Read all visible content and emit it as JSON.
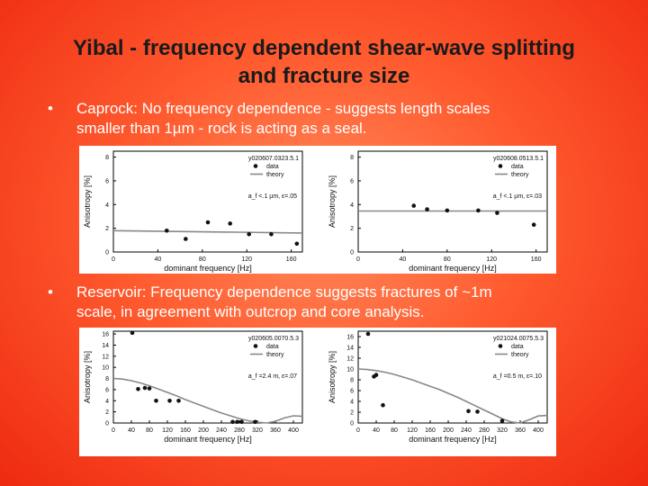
{
  "slide": {
    "title_line1": "Yibal - frequency dependent shear-wave splitting",
    "title_line2": "and fracture size",
    "bullets": [
      {
        "symbol": "•",
        "line1": "Caprock: No frequency dependence - suggests length scales",
        "line2": "smaller than 1µm - rock is acting as a seal."
      },
      {
        "symbol": "•",
        "line1": "Reservoir: Frequency dependence suggests fractures of ~1m",
        "line2": "scale, in agreement with outcrop and core analysis."
      }
    ]
  },
  "colors": {
    "background": "#ff5a2e",
    "title": "#1a1a1a",
    "bullet_text": "#ffffff",
    "theory_line": "#888888",
    "data_point": "#111111"
  },
  "chart_data": [
    {
      "type": "scatter",
      "id": "y020607.0323.5.1",
      "legend": [
        "data",
        "theory"
      ],
      "annotation": "a_f <.1 µm, ε=.05",
      "xlabel": "dominant frequency [Hz]",
      "ylabel": "Anisotropy [%]",
      "xlim": [
        0,
        170
      ],
      "ylim": [
        0,
        8.5
      ],
      "xticks": [
        0,
        40,
        80,
        120,
        160
      ],
      "yticks": [
        0,
        2,
        4,
        6,
        8
      ],
      "x": [
        48,
        65,
        85,
        105,
        122,
        142,
        165
      ],
      "y": [
        1.8,
        1.1,
        2.5,
        2.4,
        1.5,
        1.5,
        0.7
      ],
      "theory": {
        "x": [
          0,
          170
        ],
        "y": [
          1.8,
          1.6
        ]
      }
    },
    {
      "type": "scatter",
      "id": "y020608.0513.5.1",
      "legend": [
        "data",
        "theory"
      ],
      "annotation": "a_f <.1 µm, ε=.03",
      "xlabel": "dominant frequency [Hz]",
      "ylabel": "Anisotropy [%]",
      "xlim": [
        0,
        170
      ],
      "ylim": [
        0,
        8.5
      ],
      "xticks": [
        0,
        40,
        80,
        120,
        160
      ],
      "yticks": [
        0,
        2,
        4,
        6,
        8
      ],
      "x": [
        50,
        62,
        80,
        108,
        125,
        158
      ],
      "y": [
        3.9,
        3.6,
        3.5,
        3.5,
        3.3,
        2.3
      ],
      "theory": {
        "x": [
          0,
          170
        ],
        "y": [
          3.45,
          3.45
        ]
      }
    },
    {
      "type": "scatter",
      "id": "y020605.0070.5.3",
      "legend": [
        "data",
        "theory"
      ],
      "annotation": "a_f =2.4 m, ε=.07",
      "xlabel": "dominant frequency [Hz]",
      "ylabel": "Anisotropy [%]",
      "xlim": [
        0,
        420
      ],
      "ylim": [
        0,
        16.5
      ],
      "xticks": [
        0,
        40,
        80,
        120,
        160,
        200,
        240,
        280,
        320,
        360,
        400
      ],
      "yticks": [
        0,
        2,
        4,
        6,
        8,
        10,
        12,
        14,
        16
      ],
      "x": [
        42,
        55,
        70,
        80,
        95,
        125,
        145,
        265,
        275,
        285,
        315
      ],
      "y": [
        16.2,
        6.1,
        6.3,
        6.2,
        4.0,
        4.0,
        4.0,
        0.2,
        0.2,
        0.2,
        0.2
      ],
      "theory": {
        "x": [
          0,
          20,
          40,
          60,
          80,
          100,
          120,
          140,
          160,
          180,
          200,
          220,
          240,
          260,
          280,
          300,
          320,
          340,
          360,
          380,
          400,
          420
        ],
        "y": [
          8.0,
          7.9,
          7.6,
          7.2,
          6.7,
          6.1,
          5.5,
          4.9,
          4.2,
          3.6,
          3.0,
          2.4,
          1.8,
          1.3,
          0.8,
          0.4,
          0.15,
          0.0,
          0.3,
          0.9,
          1.3,
          1.2
        ]
      }
    },
    {
      "type": "scatter",
      "id": "y021024.0075.5.3",
      "legend": [
        "data",
        "theory"
      ],
      "annotation": "a_f =0.5 m, ε=.10",
      "xlabel": "dominant frequency [Hz]",
      "ylabel": "Anisotropy [%]",
      "xlim": [
        0,
        420
      ],
      "ylim": [
        0,
        17
      ],
      "xticks": [
        0,
        40,
        80,
        120,
        160,
        200,
        240,
        280,
        320,
        360,
        400
      ],
      "yticks": [
        0,
        2,
        4,
        6,
        8,
        10,
        12,
        14,
        16
      ],
      "x": [
        22,
        35,
        40,
        55,
        245,
        265,
        320
      ],
      "y": [
        16.5,
        8.6,
        8.9,
        3.3,
        2.2,
        2.1,
        0.4
      ],
      "theory": {
        "x": [
          0,
          20,
          40,
          60,
          80,
          100,
          120,
          140,
          160,
          180,
          200,
          220,
          240,
          260,
          280,
          300,
          320,
          340,
          360,
          380,
          400,
          420
        ],
        "y": [
          10.0,
          9.9,
          9.7,
          9.4,
          9.0,
          8.5,
          8.0,
          7.4,
          6.8,
          6.2,
          5.5,
          4.8,
          4.0,
          3.2,
          2.4,
          1.6,
          0.8,
          0.2,
          0.0,
          0.6,
          1.3,
          1.4
        ]
      }
    }
  ]
}
